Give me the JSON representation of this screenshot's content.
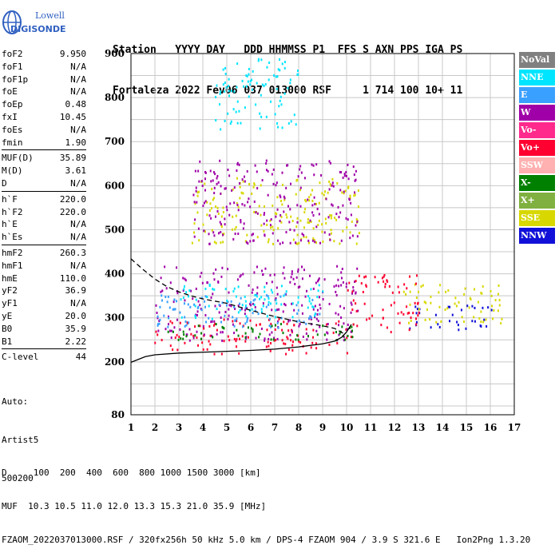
{
  "logo": {
    "line1": "Lowell",
    "line2": "DIGISONDE"
  },
  "header": {
    "line1": "Station   YYYY DAY   DDD HHMMSS P1  FFS S AXN PPS IGA PS",
    "line2": "Fortaleza 2022 Fev06 037 013000 RSF     1 714 100 10+ 11"
  },
  "params_groups": [
    [
      {
        "k": "foF2",
        "v": "9.950"
      },
      {
        "k": "foF1",
        "v": "N/A"
      },
      {
        "k": "foF1p",
        "v": "N/A"
      },
      {
        "k": "foE",
        "v": "N/A"
      },
      {
        "k": "foEp",
        "v": "0.48"
      },
      {
        "k": "fxI",
        "v": "10.45"
      },
      {
        "k": "foEs",
        "v": "N/A"
      },
      {
        "k": "fmin",
        "v": "1.90"
      }
    ],
    [
      {
        "k": "MUF(D)",
        "v": "35.89"
      },
      {
        "k": "M(D)",
        "v": "3.61"
      },
      {
        "k": "D",
        "v": "N/A"
      }
    ],
    [
      {
        "k": "h`F",
        "v": "220.0"
      },
      {
        "k": "h`F2",
        "v": "220.0"
      },
      {
        "k": "h`E",
        "v": "N/A"
      },
      {
        "k": "h`Es",
        "v": "N/A"
      }
    ],
    [
      {
        "k": "hmF2",
        "v": "260.3"
      },
      {
        "k": "hmF1",
        "v": "N/A"
      },
      {
        "k": "hmE",
        "v": "110.0"
      },
      {
        "k": "yF2",
        "v": "36.9"
      },
      {
        "k": "yF1",
        "v": "N/A"
      },
      {
        "k": "yE",
        "v": "20.0"
      },
      {
        "k": "B0",
        "v": "35.9"
      },
      {
        "k": "B1",
        "v": "2.22"
      }
    ],
    [
      {
        "k": "C-level",
        "v": "44"
      }
    ]
  ],
  "params_footer": {
    "auto": "Auto:",
    "artist": "Artist5",
    "code": "500200"
  },
  "legend": [
    {
      "label": "NoVal",
      "color": "#808080"
    },
    {
      "label": "NNE",
      "color": "#00e5ff"
    },
    {
      "label": "E",
      "color": "#3aa0ff"
    },
    {
      "label": "W",
      "color": "#a000a8"
    },
    {
      "label": "Vo-",
      "color": "#ff2a8c"
    },
    {
      "label": "Vo+",
      "color": "#ff0030"
    },
    {
      "label": "SSW",
      "color": "#ffb0b0"
    },
    {
      "label": "X-",
      "color": "#008000"
    },
    {
      "label": "X+",
      "color": "#80b040"
    },
    {
      "label": "SSE",
      "color": "#d8d800"
    },
    {
      "label": "NNW",
      "color": "#1010d8"
    }
  ],
  "bottom": {
    "line1": "D     100  200  400  600  800 1000 1500 3000 [km]",
    "line2": "MUF  10.3 10.5 11.0 12.0 13.3 15.3 21.0 35.9 [MHz]",
    "line3": "FZAOM_2022037013000.RSF / 320fx256h 50 kHz 5.0 km / DPS-4 FZAOM 904 / 3.9 S 321.6 E   Ion2Png 1.3.20"
  },
  "chart_data": {
    "type": "scatter",
    "title": "",
    "xlabel": "",
    "ylabel": "",
    "xlim": [
      1,
      17
    ],
    "ylim": [
      80,
      900
    ],
    "xticks": [
      1,
      2,
      3,
      4,
      5,
      6,
      7,
      8,
      9,
      10,
      11,
      12,
      13,
      14,
      15,
      16,
      17
    ],
    "yticks": [
      80,
      200,
      300,
      400,
      500,
      600,
      700,
      800,
      900
    ],
    "grid": true,
    "series": [
      {
        "name": "O-trace (h`F)",
        "color": "#000000",
        "style": "solid",
        "x": [
          1.0,
          1.6,
          2.0,
          3.0,
          4.0,
          5.0,
          6.0,
          7.0,
          8.0,
          9.0,
          9.5,
          9.8,
          10.0,
          10.2
        ],
        "y": [
          199,
          212,
          216,
          220,
          222,
          224,
          226,
          229,
          234,
          241,
          247,
          256,
          268,
          285
        ]
      },
      {
        "name": "Profile (dashed)",
        "color": "#000000",
        "style": "dashed",
        "x": [
          1.0,
          1.5,
          2.0,
          2.5,
          3.0,
          3.5,
          4.0,
          4.5,
          5.0,
          5.5,
          6.0,
          7.0,
          8.0,
          9.0,
          9.5,
          9.95
        ],
        "y": [
          434,
          410,
          388,
          371,
          359,
          350,
          343,
          338,
          333,
          325,
          317,
          303,
          291,
          282,
          276,
          262
        ]
      }
    ],
    "echo_clusters": [
      {
        "class": "Vo+",
        "xmin": 1.9,
        "xmax": 10.2,
        "ymin": 220,
        "ymax": 300
      },
      {
        "class": "W",
        "xmin": 2.0,
        "xmax": 10.5,
        "ymin": 250,
        "ymax": 420
      },
      {
        "class": "E",
        "xmin": 2.0,
        "xmax": 9.0,
        "ymin": 280,
        "ymax": 360
      },
      {
        "class": "NNE",
        "xmin": 3.0,
        "xmax": 9.0,
        "ymin": 300,
        "ymax": 380
      },
      {
        "class": "X-",
        "xmin": 2.5,
        "xmax": 10.5,
        "ymin": 250,
        "ymax": 290
      },
      {
        "class": "SSE",
        "xmin": 3.5,
        "xmax": 10.5,
        "ymin": 470,
        "ymax": 620
      },
      {
        "class": "W",
        "xmin": 3.5,
        "xmax": 10.5,
        "ymin": 470,
        "ymax": 660
      },
      {
        "class": "NNE",
        "xmin": 4.5,
        "xmax": 8.0,
        "ymin": 730,
        "ymax": 890
      },
      {
        "class": "NNW",
        "xmin": 12.6,
        "xmax": 16.2,
        "ymin": 275,
        "ymax": 330
      },
      {
        "class": "SSE",
        "xmin": 12.3,
        "xmax": 16.5,
        "ymin": 290,
        "ymax": 380
      },
      {
        "class": "Vo+",
        "xmin": 10.0,
        "xmax": 13.0,
        "ymin": 270,
        "ymax": 400
      }
    ]
  }
}
